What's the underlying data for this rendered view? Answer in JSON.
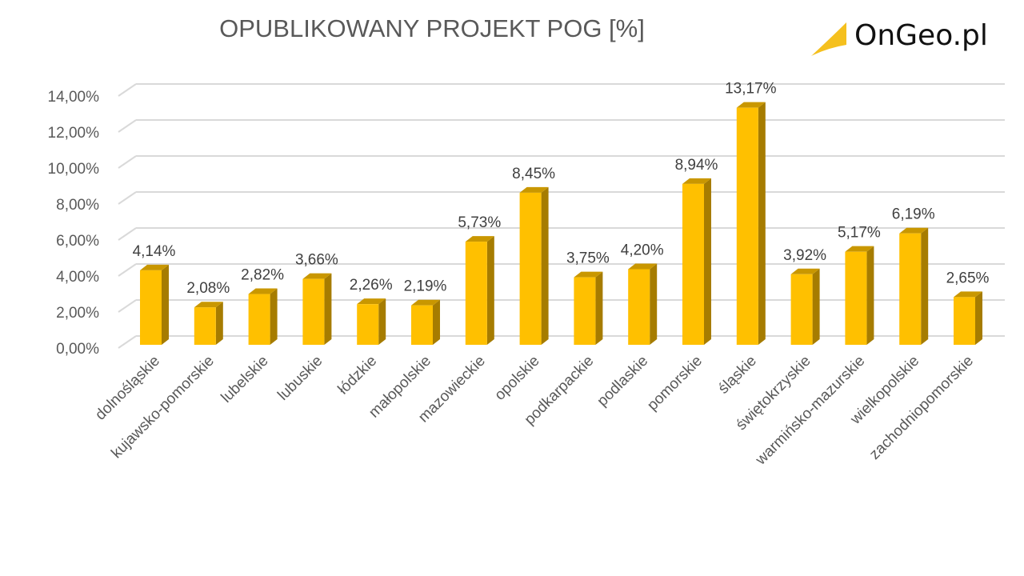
{
  "header": {
    "title": "OPUBLIKOWANY PROJEKT POG [%]"
  },
  "logo": {
    "text": "OnGeo.pl",
    "accent_color": "#F5C01E"
  },
  "colors": {
    "bar_front": "#FFC000",
    "bar_side": "#A67C00",
    "bar_top": "#C99700",
    "grid": "#D9D9D9",
    "text": "#595959"
  },
  "chart_data": {
    "type": "bar",
    "title": "OPUBLIKOWANY PROJEKT POG [%]",
    "xlabel": "",
    "ylabel": "",
    "ylim": [
      0,
      14
    ],
    "yticks": [
      "0,00%",
      "2,00%",
      "4,00%",
      "6,00%",
      "8,00%",
      "10,00%",
      "12,00%",
      "14,00%"
    ],
    "grid": true,
    "legend": null,
    "style": "3d-column",
    "categories": [
      "dolnośląskie",
      "kujawsko-pomorskie",
      "lubelskie",
      "lubuskie",
      "łódzkie",
      "małopolskie",
      "mazowieckie",
      "opolskie",
      "podkarpackie",
      "podlaskie",
      "pomorskie",
      "śląskie",
      "świętokrzyskie",
      "warmińsko-mazurskie",
      "wielkopolskie",
      "zachodniopomorskie"
    ],
    "values": [
      4.14,
      2.08,
      2.82,
      3.66,
      2.26,
      2.19,
      5.73,
      8.45,
      3.75,
      4.2,
      8.94,
      13.17,
      3.92,
      5.17,
      6.19,
      2.65
    ],
    "data_labels": [
      "4,14%",
      "2,08%",
      "2,82%",
      "3,66%",
      "2,26%",
      "2,19%",
      "5,73%",
      "8,45%",
      "3,75%",
      "4,20%",
      "8,94%",
      "13,17%",
      "3,92%",
      "5,17%",
      "6,19%",
      "2,65%"
    ]
  }
}
